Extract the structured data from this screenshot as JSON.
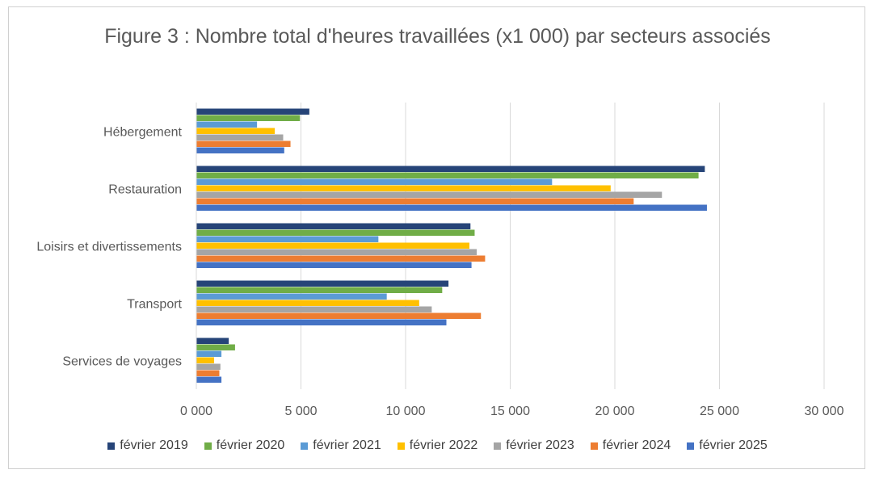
{
  "chart_data": {
    "type": "bar",
    "orientation": "horizontal",
    "title": "Figure 3 : Nombre total d'heures travaillées (x1 000) par secteurs associés",
    "categories": [
      "Hébergement",
      "Restauration",
      "Loisirs et divertissements",
      "Transport",
      "Services de voyages"
    ],
    "xlim": [
      0,
      30000
    ],
    "xticks": [
      0,
      5000,
      10000,
      15000,
      20000,
      25000,
      30000
    ],
    "xtick_labels": [
      "0 000",
      "5 000",
      "10 000",
      "15 000",
      "20 000",
      "25 000",
      "30 000"
    ],
    "grid": "vertical",
    "legend": "bottom",
    "series": [
      {
        "name": "février 2019",
        "color": "#264478",
        "values": [
          5400,
          24300,
          13100,
          12050,
          1550
        ]
      },
      {
        "name": "février 2020",
        "color": "#70AD47",
        "values": [
          4950,
          24000,
          13300,
          11750,
          1850
        ]
      },
      {
        "name": "février 2021",
        "color": "#5B9BD5",
        "values": [
          2900,
          17000,
          8700,
          9100,
          1200
        ]
      },
      {
        "name": "février 2022",
        "color": "#FFC000",
        "values": [
          3750,
          19800,
          13050,
          10650,
          850
        ]
      },
      {
        "name": "février 2023",
        "color": "#A5A5A5",
        "values": [
          4150,
          22250,
          13400,
          11250,
          1150
        ]
      },
      {
        "name": "février 2024",
        "color": "#ED7D31",
        "values": [
          4500,
          20900,
          13800,
          13600,
          1100
        ]
      },
      {
        "name": "février 2025",
        "color": "#4472C4",
        "values": [
          4200,
          24400,
          13150,
          11950,
          1200
        ]
      }
    ]
  }
}
